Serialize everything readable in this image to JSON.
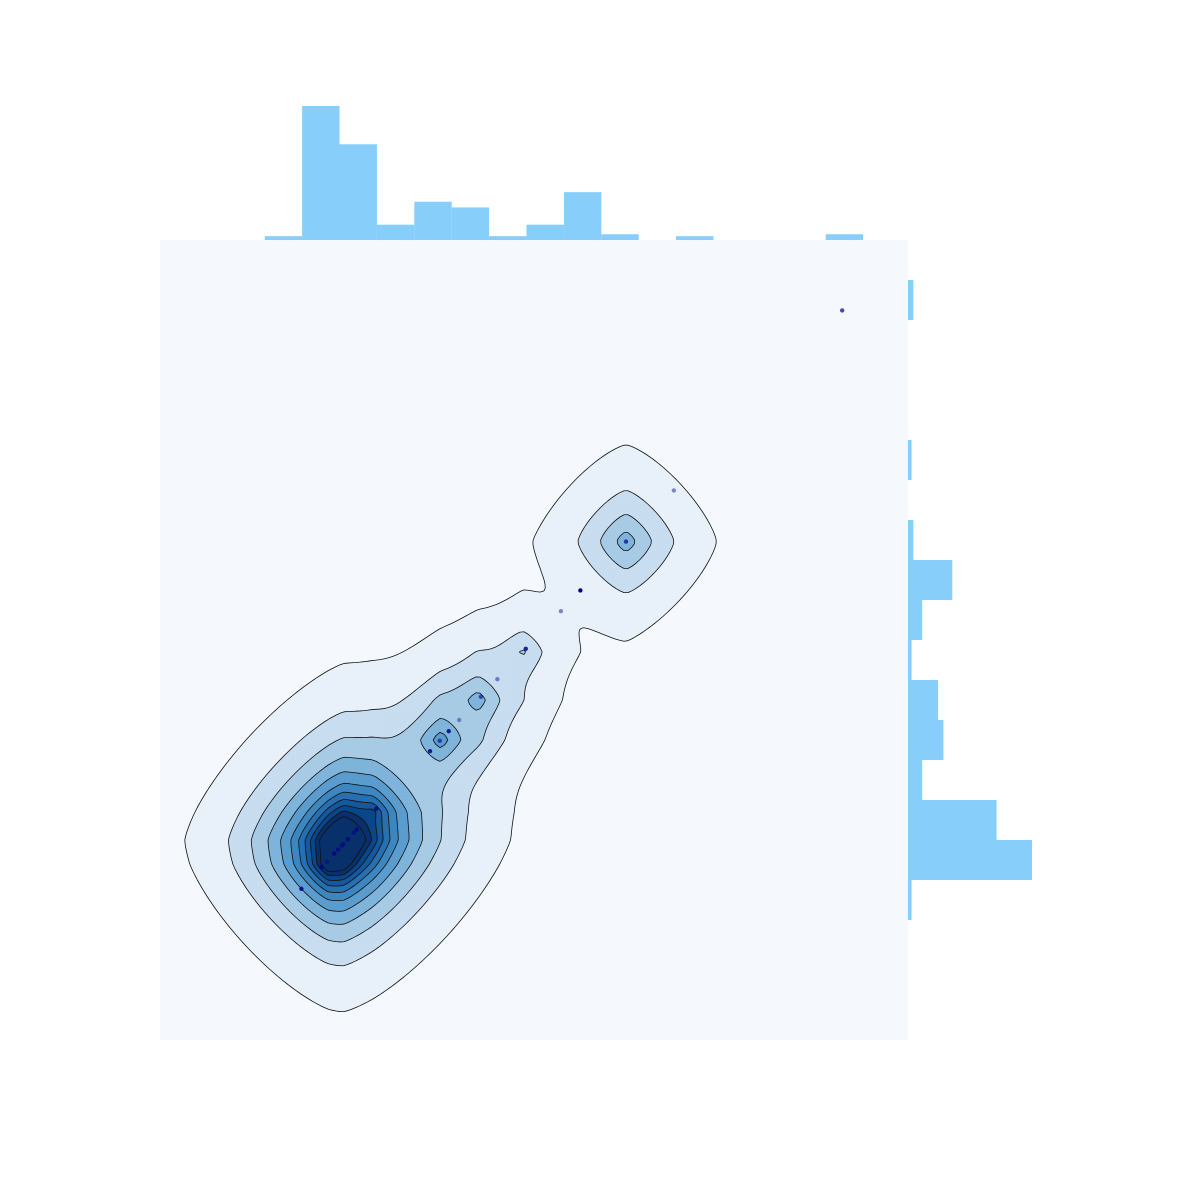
{
  "chart_data": {
    "type": "scatter",
    "subtype": "jointplot-kde-contour-with-marginal-histograms",
    "title": "",
    "xlabel": "",
    "ylabel": "",
    "xlim": [
      0,
      100
    ],
    "ylim": [
      0,
      100
    ],
    "grid": false,
    "legend": "none",
    "colors": {
      "panel_background": "#f5f9fe",
      "kde_levels": [
        "#e8f1fa",
        "#c9ddf0",
        "#a7cbe5",
        "#7fb4db",
        "#5a9ccd",
        "#3d87c0",
        "#2770b1",
        "#15589e",
        "#0a468a",
        "#08306b"
      ],
      "contour_line": "#111111",
      "histogram": "#87cefa",
      "points": "#00008b"
    },
    "points": [
      {
        "x": 91.2,
        "y": 91.2,
        "a": 0.7
      },
      {
        "x": 68.7,
        "y": 68.7,
        "a": 0.45
      },
      {
        "x": 62.3,
        "y": 62.3,
        "a": 0.7
      },
      {
        "x": 56.2,
        "y": 56.2,
        "a": 1.0
      },
      {
        "x": 53.6,
        "y": 53.6,
        "a": 0.45
      },
      {
        "x": 48.9,
        "y": 48.9,
        "a": 0.85
      },
      {
        "x": 45.1,
        "y": 45.1,
        "a": 0.45
      },
      {
        "x": 42.9,
        "y": 42.9,
        "a": 0.6
      },
      {
        "x": 40.0,
        "y": 40.0,
        "a": 0.4
      },
      {
        "x": 38.6,
        "y": 38.6,
        "a": 0.85
      },
      {
        "x": 37.4,
        "y": 37.4,
        "a": 0.6
      },
      {
        "x": 36.1,
        "y": 36.1,
        "a": 0.85
      },
      {
        "x": 28.9,
        "y": 28.9,
        "a": 0.8
      },
      {
        "x": 26.3,
        "y": 26.3,
        "a": 0.8
      },
      {
        "x": 25.9,
        "y": 25.9,
        "a": 0.6
      },
      {
        "x": 25.1,
        "y": 25.1,
        "a": 0.8
      },
      {
        "x": 24.5,
        "y": 24.5,
        "a": 0.6
      },
      {
        "x": 24.3,
        "y": 24.3,
        "a": 0.6
      },
      {
        "x": 23.8,
        "y": 23.8,
        "a": 0.6
      },
      {
        "x": 23.3,
        "y": 23.3,
        "a": 0.8
      },
      {
        "x": 22.3,
        "y": 22.3,
        "a": 0.5
      },
      {
        "x": 21.6,
        "y": 21.6,
        "a": 0.8
      },
      {
        "x": 18.9,
        "y": 18.9,
        "a": 0.85
      }
    ],
    "kde_components": [
      {
        "x": 24.5,
        "y": 25.0,
        "sx": 4.6,
        "sy": 4.6,
        "w": 1.0
      },
      {
        "x": 22.5,
        "y": 22.0,
        "sx": 3.6,
        "sy": 3.6,
        "w": 0.45
      },
      {
        "x": 28.5,
        "y": 28.5,
        "sx": 4.0,
        "sy": 4.0,
        "w": 0.3
      },
      {
        "x": 37.5,
        "y": 37.5,
        "sx": 3.4,
        "sy": 3.4,
        "w": 0.25
      },
      {
        "x": 42.5,
        "y": 42.5,
        "sx": 3.4,
        "sy": 3.4,
        "w": 0.17
      },
      {
        "x": 48.5,
        "y": 48.5,
        "sx": 3.0,
        "sy": 3.0,
        "w": 0.09
      },
      {
        "x": 62.3,
        "y": 62.3,
        "sx": 4.3,
        "sy": 4.3,
        "w": 0.2
      }
    ],
    "kde_levels": [
      0.012,
      0.045,
      0.09,
      0.15,
      0.22,
      0.3,
      0.38,
      0.46,
      0.54,
      0.62,
      0.7
    ],
    "marginal_x_histogram": {
      "bin_edges": [
        14,
        19,
        24,
        29,
        34,
        39,
        44,
        49,
        54,
        59,
        64,
        69,
        74,
        79,
        84,
        89,
        94
      ],
      "counts": [
        0.2,
        7,
        5,
        0.8,
        2,
        1.7,
        0.2,
        0.8,
        2.5,
        0.3,
        0,
        0.2,
        0,
        0,
        0,
        0.3
      ]
    },
    "marginal_y_histogram": {
      "bin_edges": [
        15,
        20,
        25,
        30,
        35,
        40,
        45,
        50,
        55,
        60,
        65,
        70,
        75,
        80,
        85,
        90,
        95
      ],
      "counts": [
        0.2,
        7,
        5,
        0.8,
        2,
        1.7,
        0.2,
        0.8,
        2.5,
        0.3,
        0,
        0.2,
        0,
        0,
        0,
        0.3
      ]
    }
  }
}
